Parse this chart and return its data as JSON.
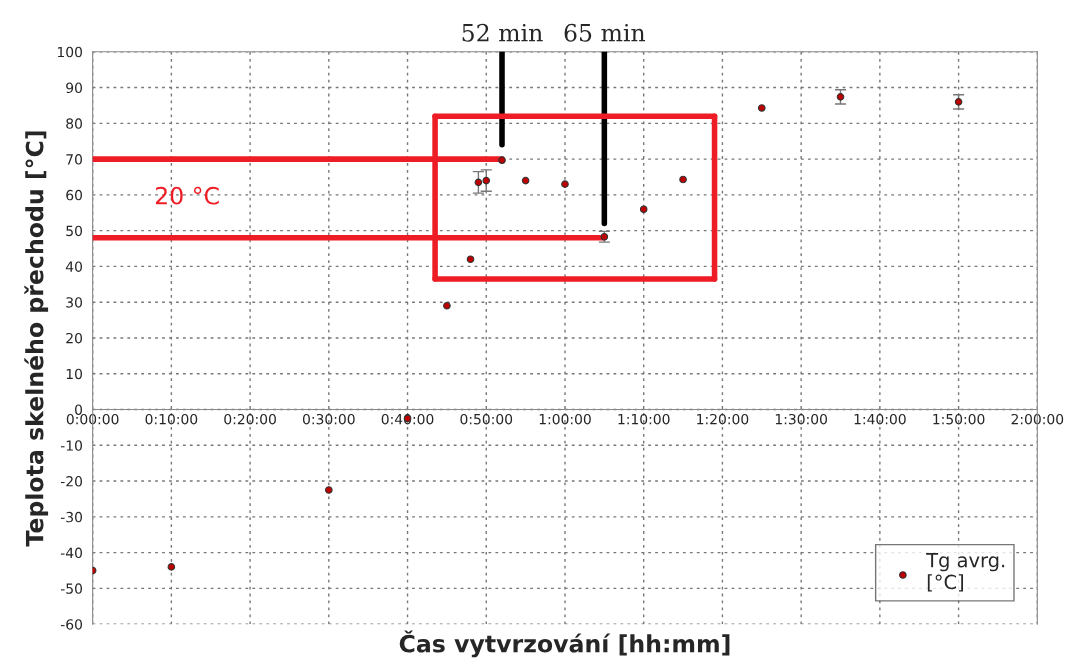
{
  "chart_data": {
    "type": "scatter",
    "xlabel": "Čas vytvrzování [hh:mm]",
    "ylabel": "Teplota skelného přechodu [°C]",
    "xlim": [
      0,
      120
    ],
    "xticks": [
      {
        "value": 0,
        "label": "0:00:00"
      },
      {
        "value": 10,
        "label": "0:10:00"
      },
      {
        "value": 20,
        "label": "0:20:00"
      },
      {
        "value": 30,
        "label": "0:30:00"
      },
      {
        "value": 40,
        "label": "0:40:00"
      },
      {
        "value": 50,
        "label": "0:50:00"
      },
      {
        "value": 60,
        "label": "1:00:00"
      },
      {
        "value": 70,
        "label": "1:10:00"
      },
      {
        "value": 80,
        "label": "1:20:00"
      },
      {
        "value": 90,
        "label": "1:30:00"
      },
      {
        "value": 100,
        "label": "1:40:00"
      },
      {
        "value": 110,
        "label": "1:50:00"
      },
      {
        "value": 120,
        "label": "2:00:00"
      }
    ],
    "ylim": [
      -60,
      100
    ],
    "yticks": [
      -60,
      -50,
      -40,
      -30,
      -20,
      -10,
      0,
      10,
      20,
      30,
      40,
      50,
      60,
      70,
      80,
      90,
      100
    ],
    "grid": true,
    "legend": "bottom right",
    "marker": "circle",
    "series": [
      {
        "name": "Tg avrg.\n[°C]",
        "color": "#c00000",
        "x": [
          0,
          10,
          30,
          40,
          45,
          48,
          49,
          50,
          52,
          55,
          60,
          65,
          70,
          75,
          85,
          95,
          110
        ],
        "values": [
          -45,
          -44,
          -22.5,
          -2.5,
          29,
          42,
          63.5,
          64,
          69.7,
          64,
          63,
          48.3,
          56,
          64.3,
          84.3,
          87.4,
          86
        ],
        "errors": [
          null,
          null,
          null,
          null,
          null,
          null,
          3,
          3,
          null,
          null,
          null,
          1.5,
          null,
          null,
          null,
          2,
          2
        ]
      },
      {
        "type": "line",
        "marker": "none",
        "color": "#000000",
        "x": [
          52,
          52
        ],
        "values": [
          74,
          100
        ]
      },
      {
        "type": "line",
        "marker": "none",
        "color": "#000000",
        "x": [
          65,
          65
        ],
        "values": [
          52,
          100
        ]
      },
      {
        "type": "line",
        "marker": "none",
        "color": "#ee1c25",
        "x": [
          0,
          52
        ],
        "values": [
          70,
          70
        ]
      },
      {
        "type": "line",
        "marker": "none",
        "color": "#ee1c25",
        "x": [
          0,
          65
        ],
        "values": [
          48,
          48
        ]
      },
      {
        "type": "line",
        "marker": "none",
        "color": "#ee1c25",
        "x": [
          43.5,
          79
        ],
        "values": [
          82,
          82
        ]
      },
      {
        "type": "line",
        "marker": "none",
        "color": "#ee1c25",
        "x": [
          43.5,
          79
        ],
        "values": [
          36.5,
          36.5
        ]
      },
      {
        "type": "line",
        "marker": "none",
        "color": "#ee1c25",
        "x": [
          43.5,
          43.5
        ],
        "values": [
          36.5,
          82
        ]
      },
      {
        "type": "line",
        "marker": "none",
        "color": "#ee1c25",
        "x": [
          79,
          79
        ],
        "values": [
          36.5,
          82
        ]
      }
    ],
    "annotations": [
      "20 °C",
      "52 min",
      "65 min"
    ]
  }
}
